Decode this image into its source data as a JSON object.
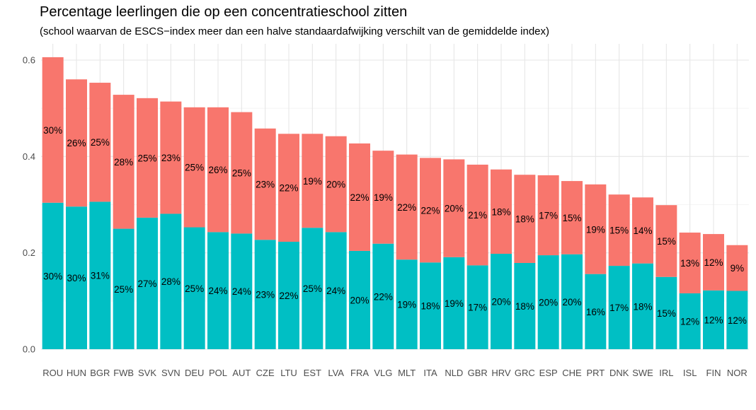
{
  "chart_data": {
    "type": "bar",
    "stacked": true,
    "title": "Percentage leerlingen die op een concentratieschool zitten",
    "subtitle": "(school waarvan de ESCS−index meer dan een halve standaardafwijking verschilt van de gemiddelde index)",
    "xlabel": "",
    "ylabel": "",
    "ylim": [
      0,
      0.63
    ],
    "yticks": [
      "0.0",
      "0.2",
      "0.4",
      "0.6"
    ],
    "grid": true,
    "legend": "none",
    "categories": [
      "ROU",
      "HUN",
      "BGR",
      "FWB",
      "SVK",
      "SVN",
      "DEU",
      "POL",
      "AUT",
      "CZE",
      "LTU",
      "EST",
      "LVA",
      "FRA",
      "VLG",
      "MLT",
      "ITA",
      "NLD",
      "GBR",
      "HRV",
      "GRC",
      "ESP",
      "CHE",
      "PRT",
      "DNK",
      "SWE",
      "IRL",
      "ISL",
      "FIN",
      "NOR"
    ],
    "series": [
      {
        "color": "#00BFC4",
        "values": [
          0.304,
          0.296,
          0.306,
          0.25,
          0.273,
          0.281,
          0.253,
          0.243,
          0.24,
          0.227,
          0.223,
          0.252,
          0.243,
          0.204,
          0.219,
          0.186,
          0.18,
          0.191,
          0.174,
          0.198,
          0.179,
          0.195,
          0.197,
          0.156,
          0.173,
          0.178,
          0.15,
          0.116,
          0.122,
          0.121
        ],
        "labels": [
          "30%",
          "30%",
          "31%",
          "25%",
          "27%",
          "28%",
          "25%",
          "24%",
          "24%",
          "23%",
          "22%",
          "25%",
          "24%",
          "20%",
          "22%",
          "19%",
          "18%",
          "19%",
          "17%",
          "20%",
          "18%",
          "20%",
          "20%",
          "16%",
          "17%",
          "18%",
          "15%",
          "12%",
          "12%",
          "12%"
        ]
      },
      {
        "color": "#F8766D",
        "values": [
          0.302,
          0.264,
          0.247,
          0.278,
          0.248,
          0.233,
          0.249,
          0.259,
          0.252,
          0.231,
          0.224,
          0.195,
          0.199,
          0.223,
          0.193,
          0.218,
          0.217,
          0.203,
          0.209,
          0.175,
          0.183,
          0.166,
          0.152,
          0.186,
          0.148,
          0.137,
          0.149,
          0.126,
          0.117,
          0.095
        ],
        "labels": [
          "30%",
          "26%",
          "25%",
          "28%",
          "25%",
          "23%",
          "25%",
          "26%",
          "25%",
          "23%",
          "22%",
          "19%",
          "20%",
          "22%",
          "19%",
          "22%",
          "22%",
          "20%",
          "21%",
          "18%",
          "18%",
          "17%",
          "15%",
          "19%",
          "15%",
          "14%",
          "15%",
          "13%",
          "12%",
          "9%"
        ]
      }
    ]
  }
}
